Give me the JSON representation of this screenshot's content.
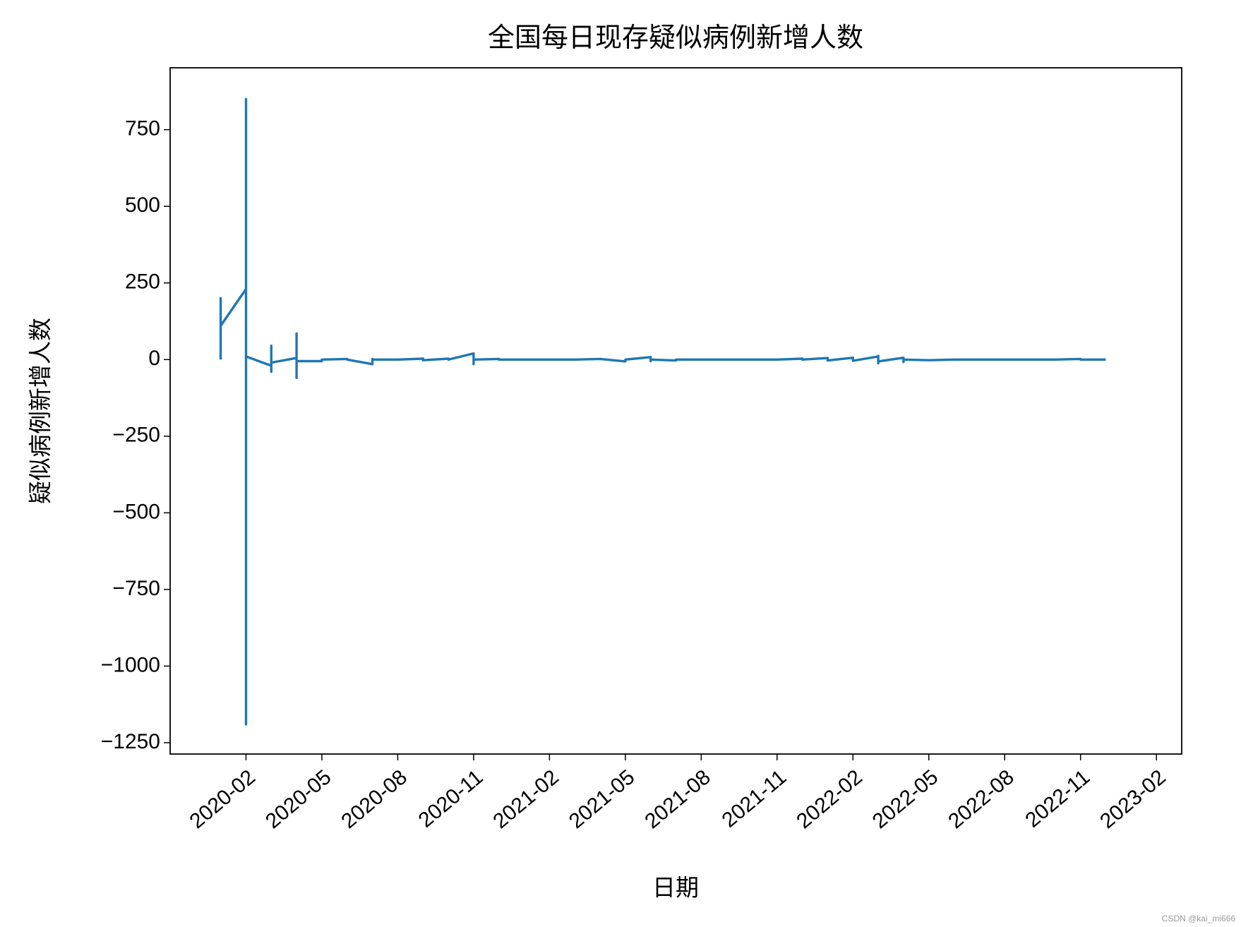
{
  "chart_data": {
    "type": "line",
    "title": "全国每日现存疑似病例新增人数",
    "xlabel": "日期",
    "ylabel": "疑似病例新增人数",
    "watermark": "CSDN @kai_mi666",
    "x": [
      "2020-01",
      "2020-01",
      "2020-01",
      "2020-01",
      "2020-01",
      "2020-01",
      "2020-01",
      "2020-01",
      "2020-01",
      "2020-02",
      "2020-02",
      "2020-02",
      "2020-02",
      "2020-02",
      "2020-02",
      "2020-02",
      "2020-02",
      "2020-02",
      "2020-02",
      "2020-02",
      "2020-02",
      "2020-02",
      "2020-02",
      "2020-02",
      "2020-03",
      "2020-03",
      "2020-03",
      "2020-03",
      "2020-03",
      "2020-03",
      "2020-03",
      "2020-03",
      "2020-03",
      "2020-03",
      "2020-04",
      "2020-04",
      "2020-04",
      "2020-04",
      "2020-04",
      "2020-04",
      "2020-04",
      "2020-04",
      "2020-05",
      "2020-05",
      "2020-06",
      "2020-06",
      "2020-07",
      "2020-07",
      "2020-07",
      "2020-08",
      "2020-09",
      "2020-09",
      "2020-10",
      "2020-10",
      "2020-11",
      "2020-11",
      "2020-11",
      "2020-12",
      "2020-12",
      "2021-01",
      "2021-02",
      "2021-03",
      "2021-04",
      "2021-05",
      "2021-05",
      "2021-06",
      "2021-06",
      "2021-06",
      "2021-06",
      "2021-07",
      "2021-07",
      "2021-08",
      "2021-09",
      "2021-10",
      "2021-11",
      "2021-12",
      "2021-12",
      "2022-01",
      "2022-01",
      "2022-02",
      "2022-02",
      "2022-03",
      "2022-03",
      "2022-03",
      "2022-03",
      "2022-04",
      "2022-04",
      "2022-04",
      "2022-05",
      "2022-06",
      "2022-07",
      "2022-08",
      "2022-09",
      "2022-10",
      "2022-11",
      "2022-11",
      "2022-12",
      "2022-12"
    ],
    "series": [
      {
        "name": "疑似病例新增人数",
        "color": "#1f77b4",
        "values": [
          0,
          0,
          0,
          0,
          15,
          120,
          60,
          200,
          110,
          230,
          850,
          -1190,
          300,
          -120,
          250,
          -100,
          140,
          -80,
          100,
          -220,
          160,
          -360,
          -60,
          10,
          -20,
          5,
          -40,
          45,
          -10,
          -30,
          15,
          -15,
          20,
          -10,
          5,
          -5,
          25,
          -10,
          85,
          -60,
          10,
          -5,
          -5,
          0,
          2,
          0,
          -15,
          2,
          0,
          0,
          3,
          -2,
          3,
          0,
          20,
          -15,
          0,
          2,
          0,
          0,
          0,
          0,
          2,
          -6,
          0,
          8,
          -5,
          4,
          0,
          -3,
          0,
          0,
          0,
          0,
          0,
          3,
          0,
          5,
          -3,
          6,
          -4,
          10,
          -12,
          12,
          -6,
          6,
          -8,
          0,
          -2,
          0,
          0,
          0,
          0,
          0,
          2,
          0,
          0,
          0
        ]
      }
    ],
    "xlim": [
      "2019-11",
      "2023-03"
    ],
    "xticks": [
      "2020-02",
      "2020-05",
      "2020-08",
      "2020-11",
      "2021-02",
      "2021-05",
      "2021-08",
      "2021-11",
      "2022-02",
      "2022-05",
      "2022-08",
      "2022-11",
      "2023-02"
    ],
    "ylim": [
      -1287,
      952
    ],
    "yticks": [
      {
        "value": -1250,
        "label": "−1250"
      },
      {
        "value": -1000,
        "label": "−1000"
      },
      {
        "value": -750,
        "label": "−750"
      },
      {
        "value": -500,
        "label": "−500"
      },
      {
        "value": -250,
        "label": "−250"
      },
      0,
      250,
      500,
      750
    ],
    "grid": false
  }
}
